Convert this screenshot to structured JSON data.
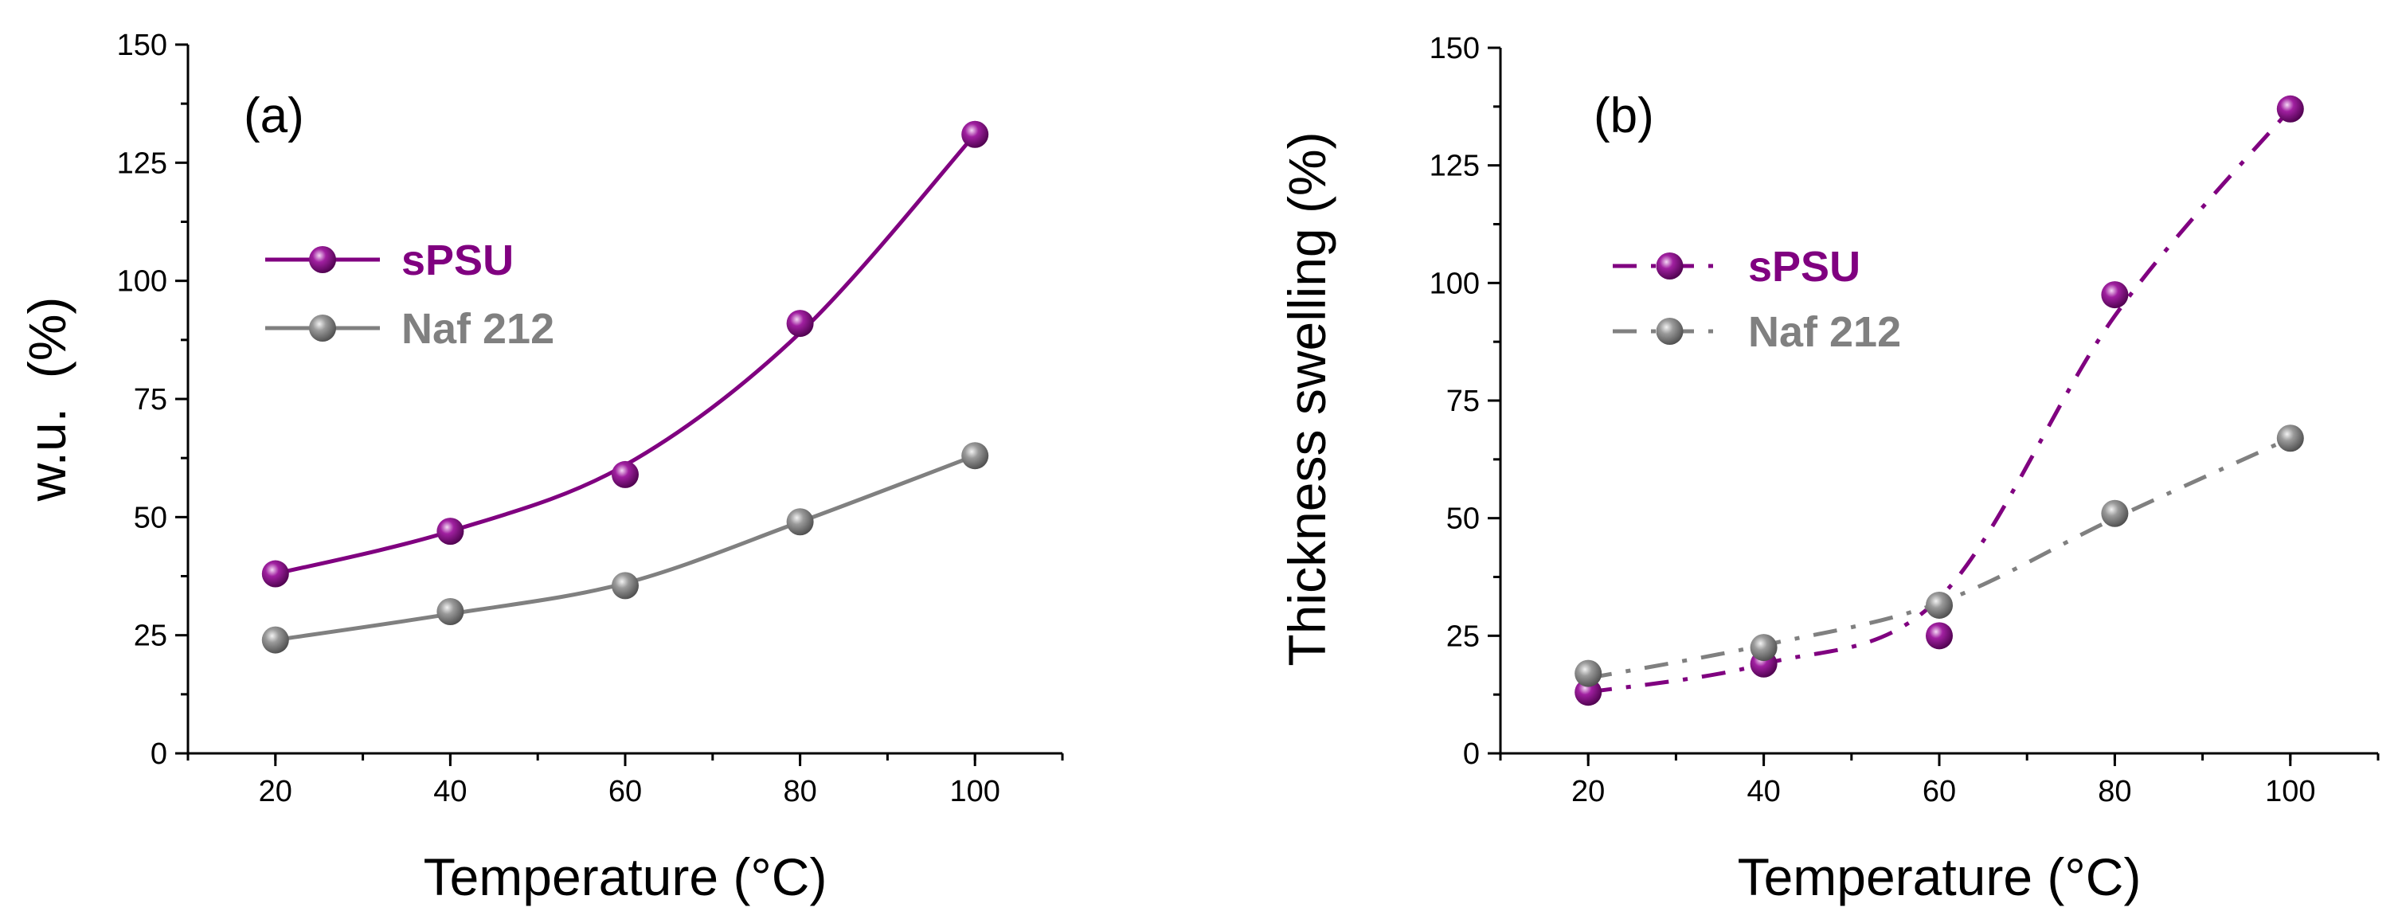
{
  "chart_data": [
    {
      "type": "line",
      "panel_label": "(a)",
      "title": "",
      "xlabel": "Temperature (°C)",
      "ylabel": "w.u.  (%)",
      "xlim": [
        10,
        110
      ],
      "ylim": [
        0,
        150
      ],
      "xticks": [
        20,
        40,
        60,
        80,
        100
      ],
      "yticks": [
        0,
        25,
        50,
        75,
        100,
        125,
        150
      ],
      "xtick_labels": [
        "20",
        "40",
        "60",
        "80",
        "100"
      ],
      "ytick_labels": [
        "0",
        "25",
        "50",
        "75",
        "100",
        "125",
        "150"
      ],
      "line_style": "solid",
      "legend_position": "upper-left",
      "x": [
        20,
        40,
        60,
        80,
        100
      ],
      "series": [
        {
          "name": "sPSU",
          "values": [
            38,
            47,
            59,
            91,
            131
          ],
          "fit": [
            38,
            47,
            61,
            89,
            131
          ],
          "color": "#800080",
          "marker": "sphere"
        },
        {
          "name": "Naf 212",
          "values": [
            24,
            30,
            35.5,
            49,
            63
          ],
          "fit": [
            24,
            29.5,
            36,
            49,
            63
          ],
          "color": "#808080",
          "marker": "sphere"
        }
      ]
    },
    {
      "type": "line",
      "panel_label": "(b)",
      "title": "",
      "xlabel": "Temperature (°C)",
      "ylabel": "Thickness swelling (%)",
      "xlim": [
        10,
        110
      ],
      "ylim": [
        0,
        150
      ],
      "xticks": [
        20,
        40,
        60,
        80,
        100
      ],
      "yticks": [
        0,
        25,
        50,
        75,
        100,
        125,
        150
      ],
      "xtick_labels": [
        "20",
        "40",
        "60",
        "80",
        "100"
      ],
      "ytick_labels": [
        "0",
        "25",
        "50",
        "75",
        "100",
        "125",
        "150"
      ],
      "line_style": "dash-dot",
      "legend_position": "upper-left",
      "x": [
        20,
        40,
        60,
        80,
        100
      ],
      "series": [
        {
          "name": "sPSU",
          "values": [
            13,
            19,
            25,
            97.5,
            137
          ],
          "fit": [
            13,
            19,
            33,
            93,
            137
          ],
          "color": "#800080",
          "marker": "sphere"
        },
        {
          "name": "Naf 212",
          "values": [
            17,
            22.5,
            31.5,
            51,
            67
          ],
          "fit": [
            16,
            23,
            32,
            50,
            67
          ],
          "color": "#808080",
          "marker": "sphere"
        }
      ]
    }
  ]
}
